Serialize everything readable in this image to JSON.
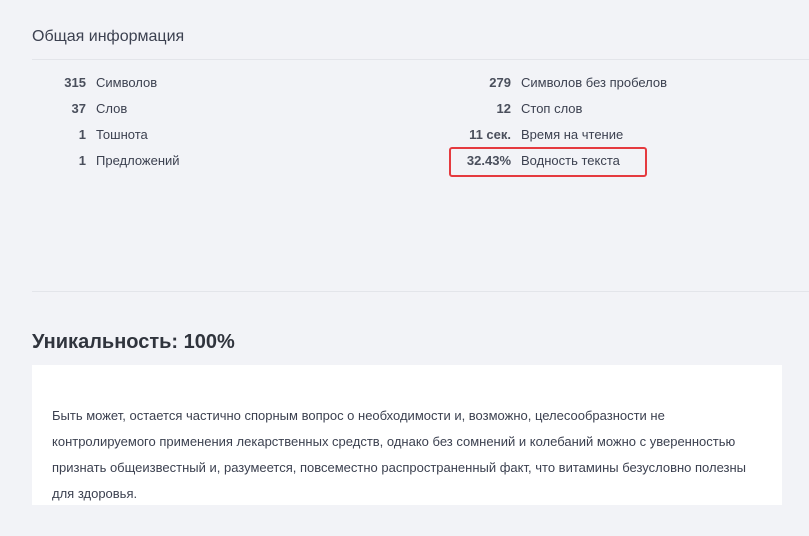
{
  "general": {
    "title": "Общая информация",
    "left": [
      {
        "value": "315",
        "label": "Символов"
      },
      {
        "value": "37",
        "label": "Слов"
      },
      {
        "value": "1",
        "label": "Тошнота"
      },
      {
        "value": "1",
        "label": "Предложений"
      }
    ],
    "right": [
      {
        "value": "279",
        "label": "Символов без пробелов"
      },
      {
        "value": "12",
        "label": "Стоп слов"
      },
      {
        "value": "11 сек.",
        "label": "Время на чтение"
      },
      {
        "value": "32.43%",
        "label": "Водность текста"
      }
    ],
    "highlight_color": "#e53a3f"
  },
  "uniqueness": {
    "heading": "Уникальность: 100%",
    "text": "Быть может, остается частично спорным вопрос о необходимости и, возможно, целесообразности не контролируемого применения лекарственных средств, однако без сомнений и колебаний можно с уверенностью признать общеизвестный и, разумеется, повсеместно распространенный факт, что витамины безусловно полезны для здоровья."
  }
}
